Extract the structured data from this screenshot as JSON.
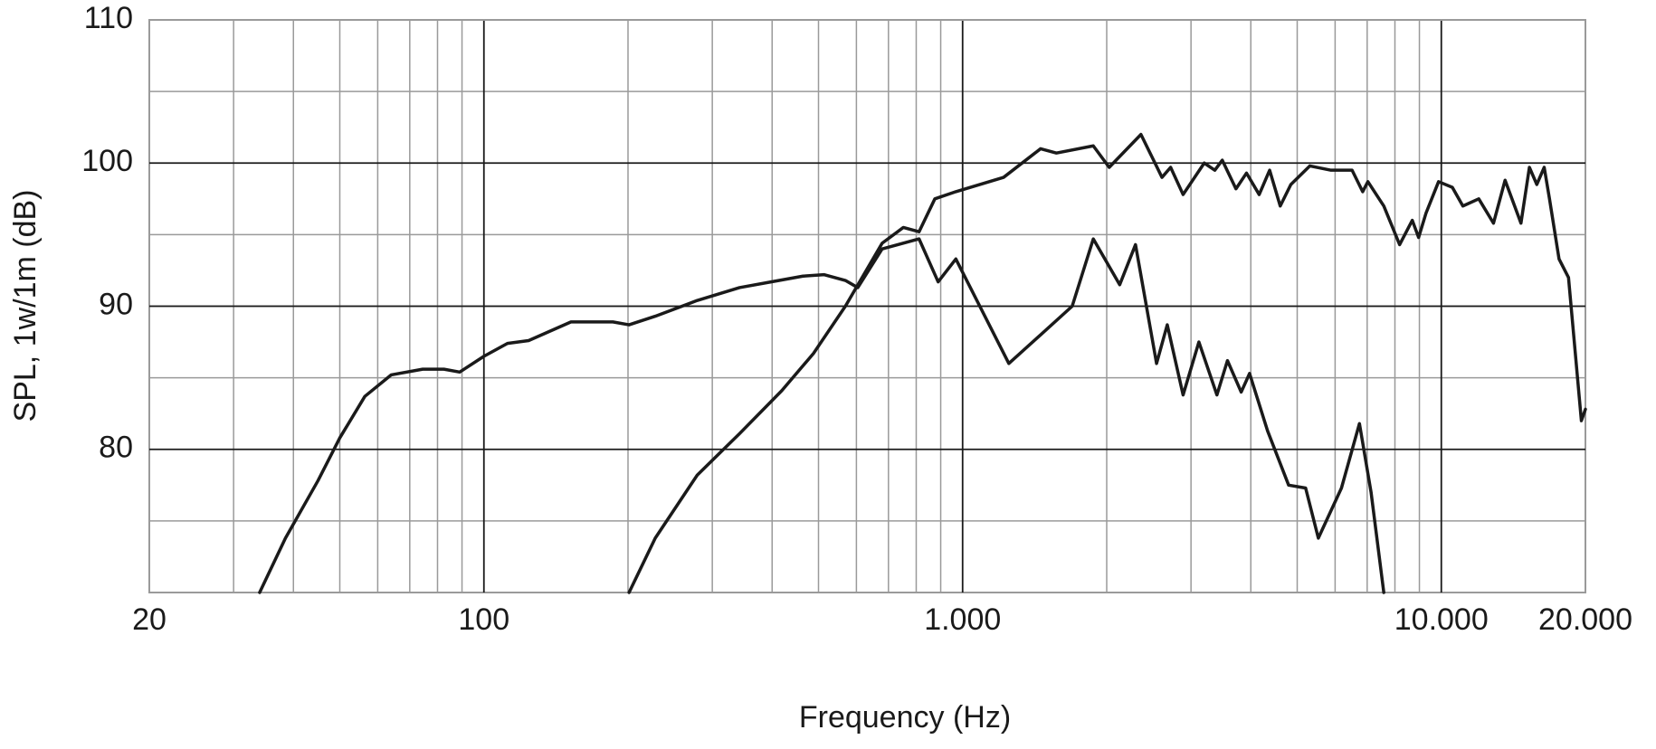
{
  "chart_data": {
    "type": "line",
    "x_label": "Frequency (Hz)",
    "y_label": "SPL, 1w/1m (dB)",
    "xscale": "log",
    "xlim": [
      20,
      20000
    ],
    "xticks": [
      20,
      100,
      {
        "value": 1000,
        "label": "1.000"
      },
      {
        "value": 10000,
        "label": "10.000"
      },
      {
        "value": 20000,
        "label": "20.000"
      }
    ],
    "ylim": [
      70,
      110
    ],
    "yticks": [
      80,
      90,
      100,
      110
    ],
    "grid": true,
    "minor_grid": true,
    "series": [
      {
        "color": "#1a1a1a",
        "x": [
          34,
          38.5,
          45,
          50,
          56.4,
          64,
          74.5,
          82.5,
          89,
          100,
          112,
          124,
          152,
          186,
          201,
          228,
          279,
          342,
          398,
          464,
          514,
          569,
          604,
          679,
          811,
          889,
          968,
          1249,
          1455,
          1694,
          1875,
          2129,
          2297,
          2542,
          2676,
          2888,
          3116,
          3398,
          3575,
          3819,
          3976,
          4335,
          4798,
          5206,
          5535,
          6186,
          6745,
          7133,
          7583
        ],
        "values": [
          70,
          73.8,
          77.8,
          80.8,
          83.7,
          85.2,
          85.6,
          85.6,
          85.4,
          86.5,
          87.4,
          87.6,
          88.9,
          88.9,
          88.7,
          89.3,
          90.4,
          91.3,
          91.7,
          92.1,
          92.2,
          91.8,
          91.3,
          94,
          94.7,
          91.7,
          93.3,
          86,
          88,
          90,
          94.7,
          91.5,
          94.3,
          86,
          88.7,
          83.8,
          87.5,
          83.8,
          86.2,
          84,
          85.3,
          81.3,
          77.5,
          77.3,
          73.8,
          77.3,
          81.8,
          77,
          70
        ]
      },
      {
        "color": "#1a1a1a",
        "x": [
          201,
          228,
          279,
          342,
          419,
          488,
          569,
          679,
          752,
          811,
          875,
          968,
          1218,
          1455,
          1570,
          1875,
          2024,
          2358,
          2609,
          2720,
          2888,
          3197,
          3364,
          3487,
          3724,
          3918,
          4164,
          4379,
          4608,
          4849,
          5314,
          5883,
          6510,
          6850,
          7025,
          7583,
          8183,
          8697,
          8966,
          9290,
          9869,
          10545,
          11093,
          11974,
          12853,
          13590,
          14668,
          15276,
          15830,
          16404,
          16826,
          17617,
          18438,
          19615,
          20000
        ],
        "values": [
          70,
          73.8,
          78.2,
          81.1,
          84.1,
          86.7,
          90,
          94.4,
          95.5,
          95.2,
          97.5,
          98,
          99,
          101,
          100.7,
          101.2,
          99.7,
          102,
          99,
          99.7,
          97.8,
          100,
          99.5,
          100.2,
          98.2,
          99.3,
          97.8,
          99.5,
          97,
          98.5,
          99.8,
          99.5,
          99.5,
          98,
          98.7,
          97,
          94.3,
          96,
          94.8,
          96.5,
          98.7,
          98.3,
          97,
          97.5,
          95.8,
          98.8,
          95.8,
          99.7,
          98.5,
          99.7,
          97.5,
          93.3,
          92,
          82,
          82.8
        ]
      }
    ]
  }
}
